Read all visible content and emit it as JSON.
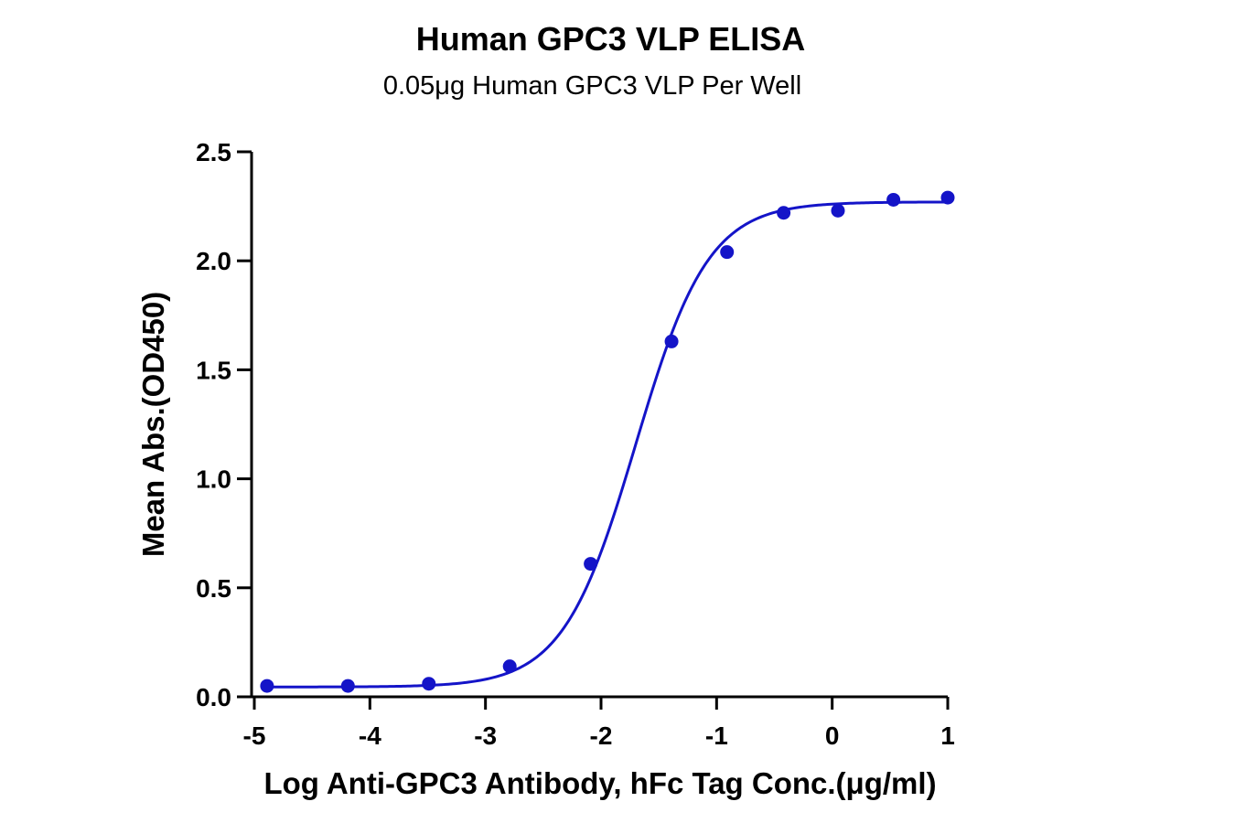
{
  "chart_data": {
    "type": "scatter",
    "title": "Human GPC3 VLP ELISA",
    "subtitle": "0.05μg Human GPC3 VLP Per Well",
    "xlabel": "Log Anti-GPC3 Antibody, hFc Tag Conc.(μg/ml)",
    "ylabel": "Mean Abs.(OD450)",
    "xlim": [
      -5,
      1
    ],
    "ylim": [
      0,
      2.5
    ],
    "xticks": [
      -5,
      -4,
      -3,
      -2,
      -1,
      0,
      1
    ],
    "yticks": [
      0,
      0.5,
      1,
      1.5,
      2,
      2.5
    ],
    "xtick_labels": [
      "-5",
      "-4",
      "-3",
      "-2",
      "-1",
      "0",
      "1"
    ],
    "ytick_labels": [
      "0.0",
      "0.5",
      "1.0",
      "1.5",
      "2.0",
      "2.5"
    ],
    "grid": false,
    "colors": {
      "series": "#1414c8"
    },
    "series": [
      {
        "x": [
          -4.89,
          -4.19,
          -3.49,
          -2.79,
          -2.09,
          -1.39,
          -0.91,
          -0.42,
          0.05,
          0.53,
          1.0
        ],
        "values": [
          0.05,
          0.05,
          0.06,
          0.14,
          0.61,
          1.63,
          2.04,
          2.22,
          2.23,
          2.28,
          2.29
        ],
        "fit": {
          "model": "4PL",
          "bottom": 0.045,
          "top": 2.27,
          "logEC50": -1.7,
          "hill": 1.38
        }
      }
    ]
  }
}
